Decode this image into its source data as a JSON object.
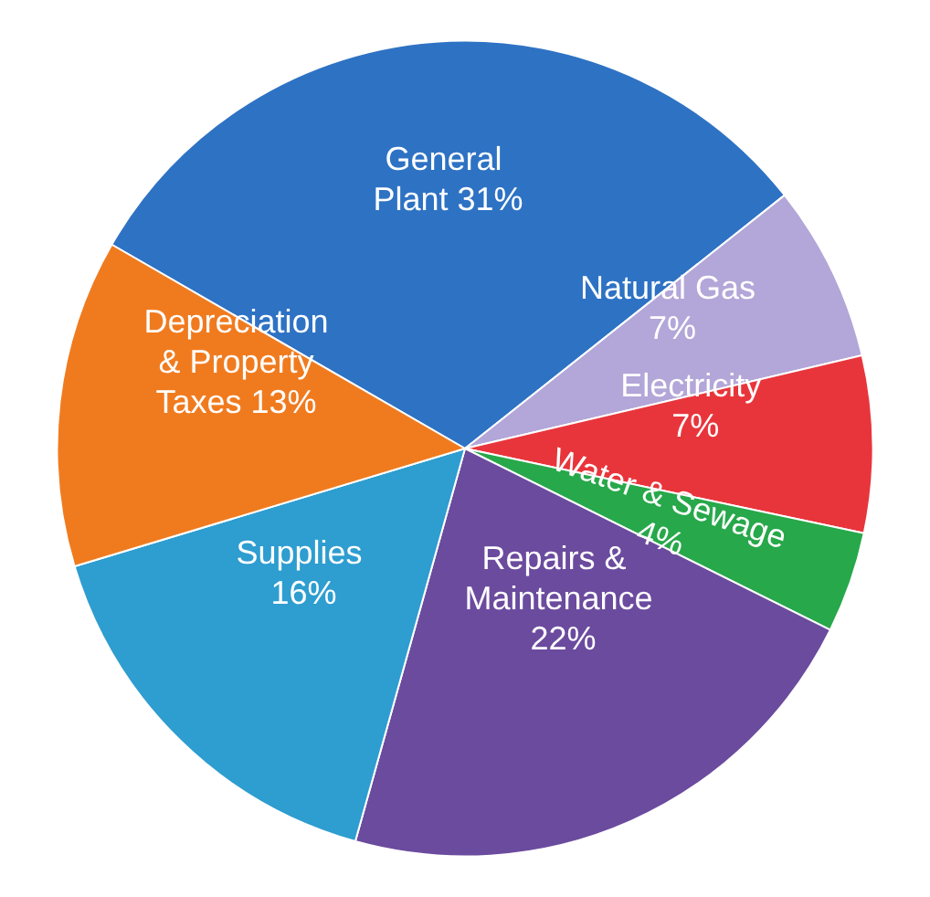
{
  "chart_data": {
    "type": "pie",
    "categories": [
      "General Plant",
      "Natural Gas",
      "Electricity",
      "Water & Sewage",
      "Repairs & Maintenance",
      "Supplies",
      "Depreciation & Property Taxes"
    ],
    "values": [
      31,
      7,
      7,
      4,
      22,
      16,
      13
    ],
    "colors": [
      "#2e72c4",
      "#b3a6d8",
      "#e8353b",
      "#27a84a",
      "#6b4b9e",
      "#2e9dd0",
      "#f07b1f"
    ],
    "value_labels": [
      "31%",
      "7%",
      "7%",
      "4%",
      "22%",
      "16%",
      "13%"
    ],
    "legend": false
  }
}
